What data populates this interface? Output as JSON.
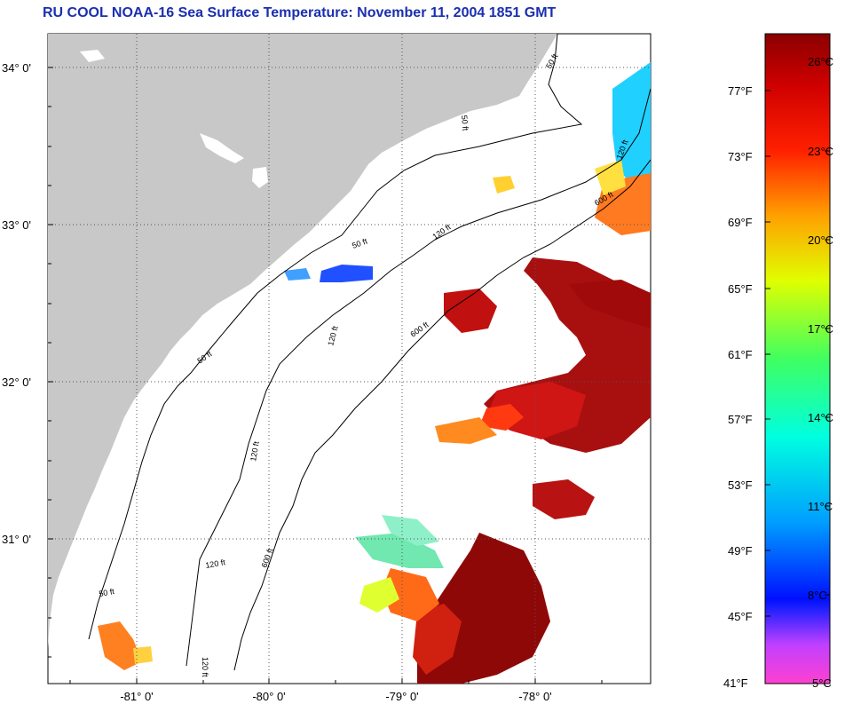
{
  "title": "RU COOL  NOAA-16  Sea Surface Temperature:  November 11, 2004 1851 GMT",
  "map": {
    "lat_labels": [
      "34° 0'",
      "33° 0'",
      "32° 0'",
      "31° 0'"
    ],
    "lon_labels": [
      "-81° 0'",
      "-80° 0'",
      "-79° 0'",
      "-78° 0'"
    ],
    "contour_labels": [
      "50 ft",
      "50 ft",
      "50 ft",
      "50 ft",
      "50 ft",
      "120 ft",
      "120 ft",
      "120 ft",
      "120 ft",
      "120 ft",
      "120 ft",
      "600 ft",
      "600 ft",
      "600 ft"
    ],
    "colors": {
      "land": "#c8c8c8",
      "ocean_nodata": "#ffffff",
      "contour": "#000000",
      "grid": "#555555"
    }
  },
  "colorbar": {
    "fahrenheit_labels": [
      "77°F",
      "73°F",
      "69°F",
      "65°F",
      "61°F",
      "57°F",
      "53°F",
      "49°F",
      "45°F",
      "41°F"
    ],
    "celsius_labels": [
      "26°C",
      "23°C",
      "20°C",
      "17°C",
      "14°C",
      "11°C",
      "8°C",
      "5°C"
    ],
    "stops": [
      "#ff40d0",
      "#a040ff",
      "#0010ff",
      "#00a0ff",
      "#00ffe0",
      "#40ff60",
      "#e0ff00",
      "#ffa000",
      "#ff2000",
      "#d00000",
      "#8a0000"
    ]
  }
}
